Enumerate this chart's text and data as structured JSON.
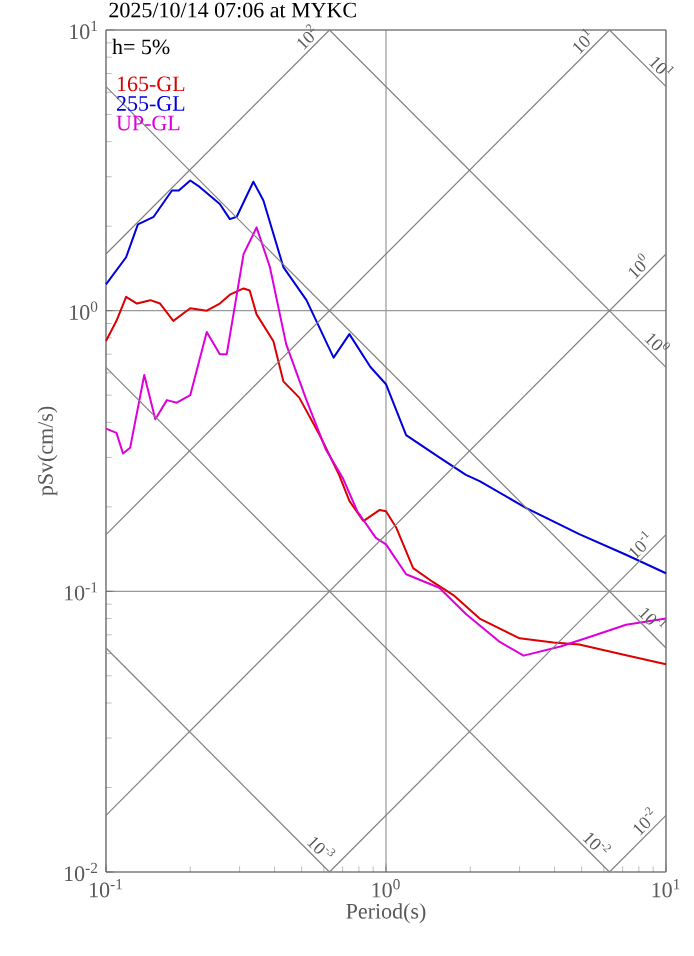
{
  "chart_data": {
    "type": "line",
    "title": "2025/10/14 07:06 at MYKC",
    "xlabel": "Period(s)",
    "ylabel": "pSv(cm/s)",
    "annotations": [
      "h= 5%"
    ],
    "log": "xy",
    "grid": true,
    "legend": "top left",
    "xlim": [
      0.1,
      10
    ],
    "ylim": [
      0.01,
      10
    ],
    "xticks": [
      {
        "value": 0.1,
        "label": "10$^{-1}$"
      },
      {
        "value": 1,
        "label": "10$^{0}$"
      },
      {
        "value": 10,
        "label": "10$^{1}$"
      }
    ],
    "yticks": [
      {
        "value": 0.01,
        "label": "10$^{-2}$"
      },
      {
        "value": 0.1,
        "label": "10$^{-1}$"
      },
      {
        "value": 1,
        "label": "10$^{0}$"
      },
      {
        "value": 10,
        "label": "10$^{1}$"
      }
    ],
    "series": [
      {
        "name": "165-GL",
        "color": "#dd0000",
        "x": [
          0.1,
          0.109,
          0.118,
          0.129,
          0.144,
          0.156,
          0.174,
          0.2,
          0.229,
          0.255,
          0.277,
          0.31,
          0.326,
          0.345,
          0.396,
          0.43,
          0.49,
          0.58,
          0.68,
          0.74,
          0.83,
          0.95,
          1.0,
          1.09,
          1.25,
          1.47,
          1.74,
          2.16,
          3.0,
          3.96,
          4.9,
          7.2,
          10
        ],
        "values": [
          0.78,
          0.92,
          1.12,
          1.06,
          1.09,
          1.06,
          0.92,
          1.02,
          1.0,
          1.06,
          1.14,
          1.2,
          1.18,
          0.97,
          0.78,
          0.56,
          0.49,
          0.36,
          0.26,
          0.21,
          0.178,
          0.195,
          0.193,
          0.168,
          0.121,
          0.108,
          0.097,
          0.08,
          0.068,
          0.0657,
          0.0646,
          0.0592,
          0.055
        ]
      },
      {
        "name": "255-GL",
        "color": "#0000dd",
        "x": [
          0.1,
          0.118,
          0.13,
          0.148,
          0.172,
          0.182,
          0.2,
          0.216,
          0.255,
          0.277,
          0.293,
          0.336,
          0.365,
          0.43,
          0.52,
          0.65,
          0.74,
          0.88,
          1.0,
          1.18,
          1.55,
          1.93,
          2.16,
          3.17,
          4.9,
          7.2,
          10
        ],
        "values": [
          1.24,
          1.55,
          2.03,
          2.16,
          2.68,
          2.68,
          2.91,
          2.76,
          2.4,
          2.12,
          2.16,
          2.88,
          2.47,
          1.43,
          1.09,
          0.68,
          0.825,
          0.63,
          0.547,
          0.36,
          0.3,
          0.26,
          0.247,
          0.198,
          0.16,
          0.135,
          0.116
        ]
      },
      {
        "name": "UP-GL",
        "color": "#dd00dd",
        "x": [
          0.1,
          0.109,
          0.115,
          0.122,
          0.137,
          0.15,
          0.165,
          0.179,
          0.2,
          0.229,
          0.255,
          0.27,
          0.31,
          0.345,
          0.385,
          0.44,
          0.52,
          0.61,
          0.7,
          0.79,
          0.92,
          1.0,
          1.18,
          1.55,
          1.93,
          2.55,
          3.1,
          4.2,
          5.5,
          7.2,
          10
        ],
        "values": [
          0.38,
          0.367,
          0.31,
          0.325,
          0.59,
          0.41,
          0.48,
          0.47,
          0.5,
          0.84,
          0.7,
          0.7,
          1.59,
          1.98,
          1.43,
          0.76,
          0.48,
          0.32,
          0.254,
          0.193,
          0.155,
          0.147,
          0.115,
          0.103,
          0.083,
          0.066,
          0.059,
          0.0636,
          0.0695,
          0.076,
          0.08
        ]
      },
      {
        "name": "10$^{2}$",
        "color": "#808080",
        "x": [
          0.1,
          0.6283
        ],
        "values": [
          1.592,
          10
        ]
      },
      {
        "name": "10$^{1}$",
        "color": "#808080",
        "x": [
          0.1,
          6.283
        ],
        "values": [
          0.1592,
          10
        ]
      },
      {
        "name": "10$^{0}$",
        "color": "#808080",
        "x": [
          0.1,
          10
        ],
        "values": [
          0.01592,
          1.592
        ]
      },
      {
        "name": "10$^{-1}$",
        "color": "#808080",
        "x": [
          0.6283,
          10
        ],
        "values": [
          0.01,
          0.1592
        ]
      },
      {
        "name": "10$^{-2}$",
        "color": "#808080",
        "x": [
          6.283,
          10
        ],
        "values": [
          0.01,
          0.01592
        ]
      },
      {
        "name": "10$^{1}$",
        "color": "#808080",
        "x": [
          6.283,
          10
        ],
        "values": [
          10,
          6.283
        ]
      },
      {
        "name": "10$^{0}$",
        "color": "#808080",
        "x": [
          0.6283,
          10
        ],
        "values": [
          10,
          0.6283
        ]
      },
      {
        "name": "10$^{-1}$",
        "color": "#808080",
        "x": [
          0.1,
          10
        ],
        "values": [
          6.283,
          0.06283
        ]
      },
      {
        "name": "10$^{-2}$",
        "color": "#808080",
        "x": [
          0.1,
          6.283
        ],
        "values": [
          0.6283,
          0.01
        ]
      },
      {
        "name": "10$^{-3}$",
        "color": "#808080",
        "x": [
          0.1,
          0.6283
        ],
        "values": [
          0.06283,
          0.01
        ]
      }
    ]
  }
}
